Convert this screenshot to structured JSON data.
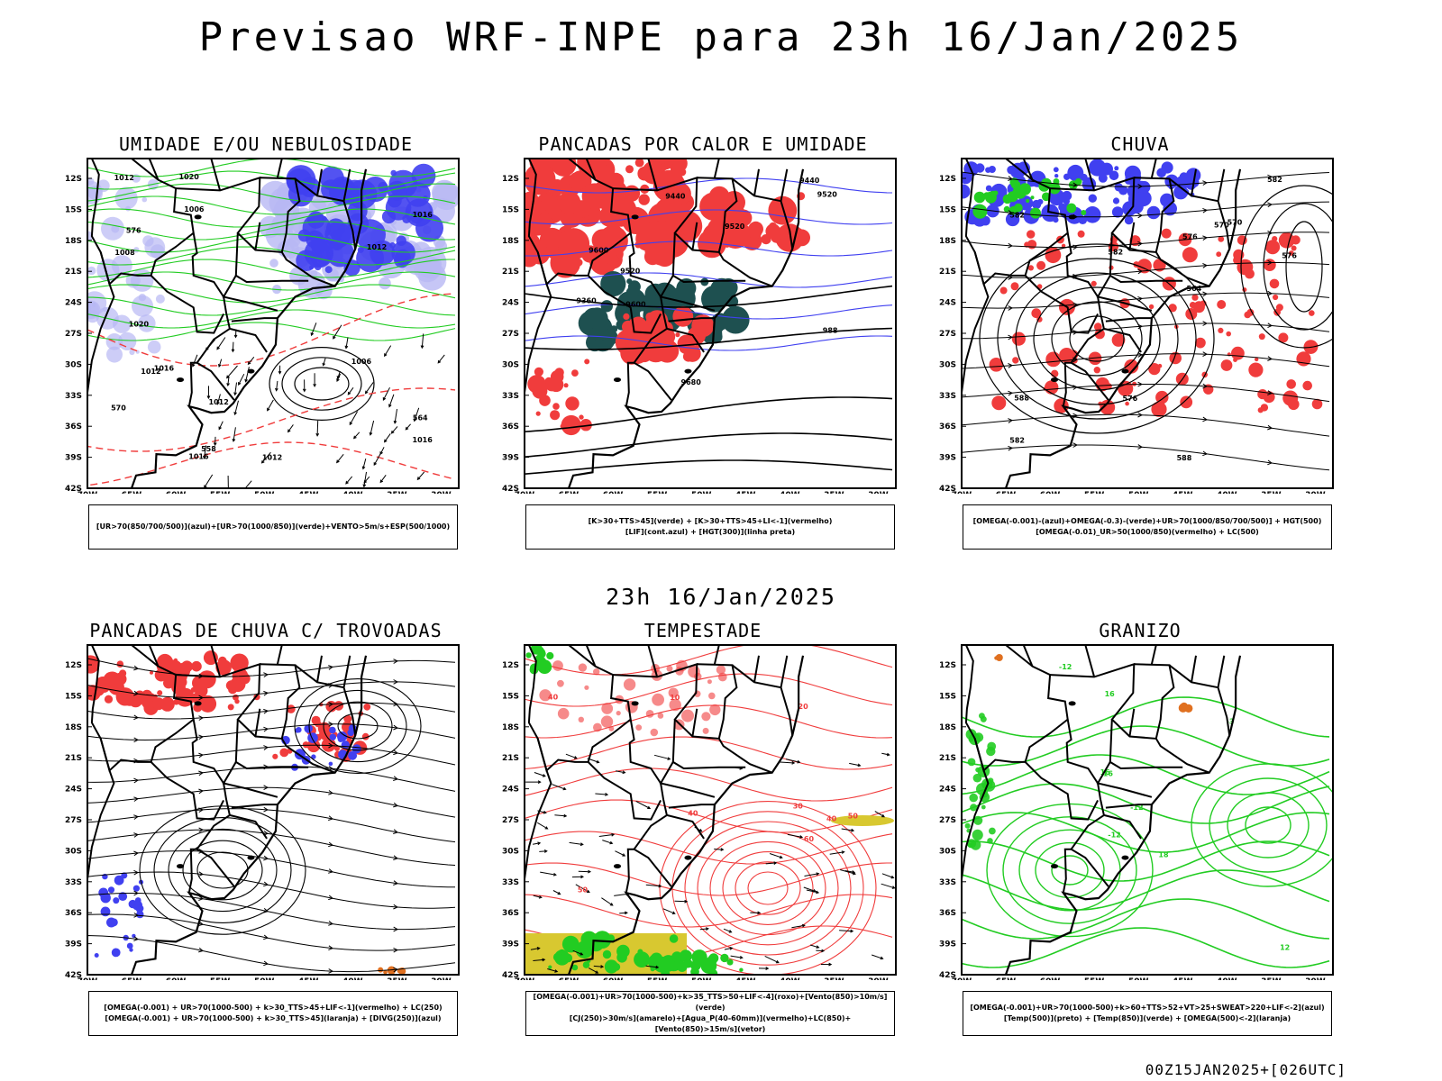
{
  "header": {
    "title": "Previsao WRF-INPE  para 23h 16/Jan/2025",
    "subtitle": "23h 16/Jan/2025",
    "footer": "00Z15JAN2025+[026UTC]"
  },
  "axes": {
    "lat_labels": [
      "12S",
      "15S",
      "18S",
      "21S",
      "24S",
      "27S",
      "30S",
      "33S",
      "36S",
      "39S",
      "42S"
    ],
    "lon_labels": [
      "70W",
      "65W",
      "60W",
      "55W",
      "50W",
      "45W",
      "40W",
      "35W",
      "30W"
    ]
  },
  "panels": [
    {
      "title": "UMIDADE E/OU NEBULOSIDADE",
      "legend": [
        "[UR>70(850/700/500)](azul)+[UR>70(1000/850)](verde)+VENTO>5m/s+ESP(500/1000)"
      ],
      "contour_labels": [
        "1012",
        "1012",
        "1012",
        "1012",
        "1008",
        "1016",
        "1016",
        "1012",
        "1020",
        "1016",
        "1020",
        "1016",
        "1006",
        "1006",
        "576",
        "570",
        "564",
        "558"
      ]
    },
    {
      "title": "PANCADAS POR CALOR E UMIDADE",
      "legend": [
        "[K>30+TTS>45](verde) + [K>30+TTS>45+LI<-1](vermelho)",
        "[LIF](cont.azul) + [HGT(300)](linha preta)"
      ],
      "contour_labels": [
        "9600",
        "9520",
        "9680",
        "9600",
        "9520",
        "9440",
        "9520",
        "9440",
        "9360",
        "988"
      ]
    },
    {
      "title": "CHUVA",
      "legend": [
        "[OMEGA(-0.001)-(azul)+OMEGA(-0.3)-(verde)+UR>70(1000/850/700/500)] + HGT(500)",
        "[OMEGA(-0.01)_UR>50(1000/850)(vermelho) + LC(500)"
      ],
      "contour_labels": [
        "588",
        "582",
        "576",
        "582",
        "582",
        "576",
        "570",
        "588",
        "582",
        "576",
        "570",
        "564"
      ]
    },
    {
      "title": "PANCADAS DE CHUVA C/ TROVOADAS",
      "legend": [
        "[OMEGA(-0.001) + UR>70(1000-500) + k>30_TTS>45+LIF<-1](vermelho) + LC(250)",
        "[OMEGA(-0.001) + UR>70(1000-500) + k>30_TTS>45](laranja) + [DIVG(250)](azul)"
      ],
      "contour_labels": []
    },
    {
      "title": "TEMPESTADE",
      "legend": [
        "[OMEGA(-0.001)+UR>70(1000-500)+k>35_TTS>50+LIF<-4](roxo)+[Vento(850)>10m/s](verde)",
        "[CJ(250)>30m/s](amarelo)+[Agua_P(40-60mm)](vermelho)+LC(850)+[Vento(850)>15m/s](vetor)"
      ],
      "contour_labels": [
        "40",
        "50",
        "60",
        "40",
        "50",
        "40",
        "30",
        "20",
        "10"
      ]
    },
    {
      "title": "GRANIZO",
      "legend": [
        "[OMEGA(-0.001)+UR>70(1000-500)+k>60+TTS>52+VT>25+SWEAT>220+LIF<-2](azul)",
        "[Temp(500)](preto) + [Temp(850)](verde) + [OMEGA(500)<-2](laranja)"
      ],
      "contour_labels": [
        "-3",
        "-12",
        "16",
        "-12",
        "16",
        "18",
        "16",
        "-12",
        "12"
      ]
    }
  ],
  "colors": {
    "blue": "#4040f0",
    "light_blue": "#b8b8f4",
    "green": "#22cc22",
    "red": "#f03c3c",
    "dark_teal": "#1e5050",
    "yellow": "#d8c830",
    "orange": "#e07020"
  }
}
